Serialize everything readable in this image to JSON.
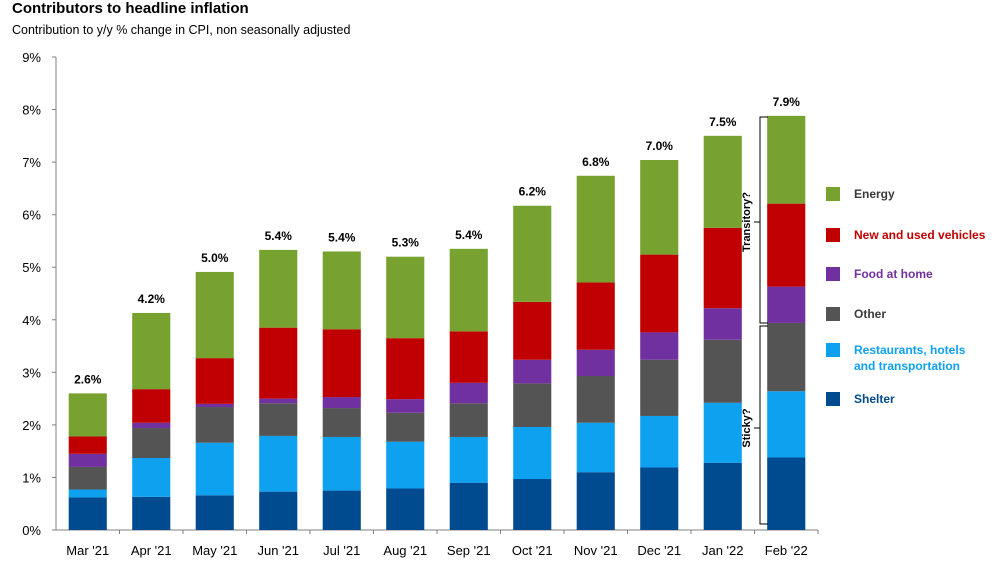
{
  "title": "Contributors to headline inflation",
  "subtitle": "Contribution to y/y % change in CPI, non seasonally adjusted",
  "chart_data": {
    "type": "bar",
    "stacked": true,
    "categories": [
      "Mar '21",
      "Apr '21",
      "May '21",
      "Jun '21",
      "Jul '21",
      "Aug '21",
      "Sep '21",
      "Oct '21",
      "Nov '21",
      "Dec '21",
      "Jan '22",
      "Feb '22"
    ],
    "totals": [
      "2.6%",
      "4.2%",
      "5.0%",
      "5.4%",
      "5.4%",
      "5.3%",
      "5.4%",
      "6.2%",
      "6.8%",
      "7.0%",
      "7.5%",
      "7.9%"
    ],
    "series": [
      {
        "name": "Shelter",
        "color": "#004a8f",
        "values": [
          0.62,
          0.63,
          0.66,
          0.73,
          0.75,
          0.79,
          0.9,
          0.97,
          1.1,
          1.19,
          1.28,
          1.38
        ]
      },
      {
        "name": "Restaurants, hotels\nand transportation",
        "color": "#0ea1f0",
        "values": [
          0.15,
          0.74,
          1.0,
          1.06,
          1.02,
          0.89,
          0.87,
          0.99,
          0.94,
          0.98,
          1.14,
          1.26
        ]
      },
      {
        "name": "Other",
        "color": "#545454",
        "values": [
          0.43,
          0.57,
          0.68,
          0.62,
          0.55,
          0.55,
          0.64,
          0.83,
          0.89,
          1.07,
          1.2,
          1.3
        ]
      },
      {
        "name": "Food  at home",
        "color": "#7030a0",
        "values": [
          0.25,
          0.1,
          0.06,
          0.09,
          0.21,
          0.26,
          0.39,
          0.45,
          0.5,
          0.52,
          0.6,
          0.69
        ]
      },
      {
        "name": "New and used vehicles",
        "color": "#c00000",
        "values": [
          0.33,
          0.64,
          0.87,
          1.35,
          1.29,
          1.16,
          0.98,
          1.1,
          1.28,
          1.48,
          1.53,
          1.58
        ]
      },
      {
        "name": "Energy",
        "color": "#78a22f",
        "values": [
          0.82,
          1.45,
          1.64,
          1.48,
          1.48,
          1.55,
          1.57,
          1.83,
          2.03,
          1.8,
          1.75,
          1.67
        ]
      }
    ],
    "legend_order": [
      "Energy",
      "New and used vehicles",
      "Food  at home",
      "Other",
      "Restaurants, hotels\nand transportation",
      "Shelter"
    ],
    "yticks": [
      "0%",
      "1%",
      "2%",
      "3%",
      "4%",
      "5%",
      "6%",
      "7%",
      "8%",
      "9%"
    ],
    "ylim": [
      0,
      9
    ],
    "legend_position": "right",
    "grid": false,
    "annotations": {
      "upper_bracket": "Transitory?",
      "lower_bracket": "Sticky?"
    }
  }
}
